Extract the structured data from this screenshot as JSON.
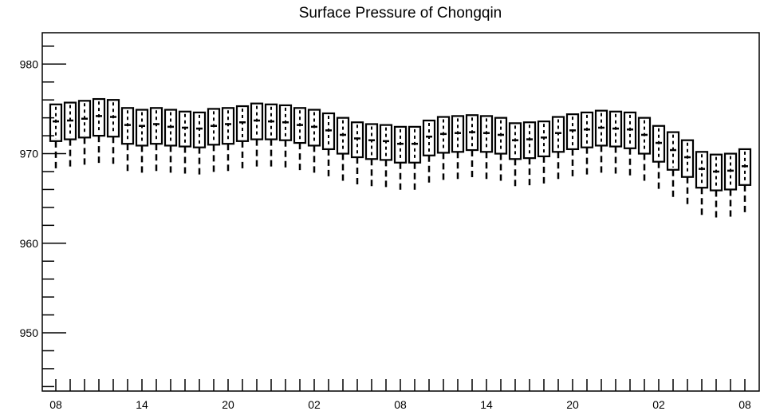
{
  "chart_data": {
    "type": "boxplot",
    "title": "Surface Pressure of Chongqin",
    "xlabel": "",
    "ylabel": "",
    "ylim": [
      943.5,
      983.5
    ],
    "y_ticks": [
      950,
      960,
      970,
      980
    ],
    "y_tick_labels": [
      "950",
      "960",
      "970",
      "980"
    ],
    "x_tick_labels": [
      "08",
      "14",
      "20",
      "02",
      "08",
      "14",
      "20",
      "02",
      "08"
    ],
    "x_tick_positions": [
      0,
      6,
      12,
      18,
      24,
      30,
      36,
      42,
      48
    ],
    "grid": false,
    "boxes": [
      {
        "x": 0,
        "min": 968.1,
        "q1": 971.4,
        "median": 973.6,
        "q3": 975.5,
        "max": 975.5
      },
      {
        "x": 1,
        "min": 968.3,
        "q1": 971.6,
        "median": 973.7,
        "q3": 975.7,
        "max": 975.7
      },
      {
        "x": 2,
        "min": 968.5,
        "q1": 971.8,
        "median": 973.9,
        "q3": 975.9,
        "max": 975.9
      },
      {
        "x": 3,
        "min": 968.7,
        "q1": 972.0,
        "median": 974.2,
        "q3": 976.1,
        "max": 976.1
      },
      {
        "x": 4,
        "min": 968.6,
        "q1": 971.9,
        "median": 974.1,
        "q3": 976.0,
        "max": 976.0
      },
      {
        "x": 5,
        "min": 967.8,
        "q1": 971.1,
        "median": 973.2,
        "q3": 975.1,
        "max": 975.1
      },
      {
        "x": 6,
        "min": 967.7,
        "q1": 970.9,
        "median": 973.1,
        "q3": 974.9,
        "max": 974.9
      },
      {
        "x": 7,
        "min": 967.9,
        "q1": 971.1,
        "median": 973.3,
        "q3": 975.1,
        "max": 975.1
      },
      {
        "x": 8,
        "min": 967.7,
        "q1": 970.9,
        "median": 973.0,
        "q3": 974.9,
        "max": 974.9
      },
      {
        "x": 9,
        "min": 967.5,
        "q1": 970.8,
        "median": 972.9,
        "q3": 974.7,
        "max": 974.7
      },
      {
        "x": 10,
        "min": 967.4,
        "q1": 970.7,
        "median": 972.8,
        "q3": 974.6,
        "max": 974.6
      },
      {
        "x": 11,
        "min": 967.7,
        "q1": 971.0,
        "median": 973.1,
        "q3": 975.0,
        "max": 975.0
      },
      {
        "x": 12,
        "min": 967.9,
        "q1": 971.1,
        "median": 973.3,
        "q3": 975.1,
        "max": 975.1
      },
      {
        "x": 13,
        "min": 968.1,
        "q1": 971.4,
        "median": 973.5,
        "q3": 975.3,
        "max": 975.3
      },
      {
        "x": 14,
        "min": 968.4,
        "q1": 971.6,
        "median": 973.7,
        "q3": 975.6,
        "max": 975.6
      },
      {
        "x": 15,
        "min": 968.3,
        "q1": 971.6,
        "median": 973.6,
        "q3": 975.5,
        "max": 975.5
      },
      {
        "x": 16,
        "min": 968.2,
        "q1": 971.5,
        "median": 973.5,
        "q3": 975.4,
        "max": 975.4
      },
      {
        "x": 17,
        "min": 967.9,
        "q1": 971.2,
        "median": 973.2,
        "q3": 975.1,
        "max": 975.1
      },
      {
        "x": 18,
        "min": 967.7,
        "q1": 970.9,
        "median": 973.0,
        "q3": 974.9,
        "max": 974.9
      },
      {
        "x": 19,
        "min": 967.2,
        "q1": 970.5,
        "median": 972.6,
        "q3": 974.5,
        "max": 974.5
      },
      {
        "x": 20,
        "min": 966.7,
        "q1": 970.0,
        "median": 972.1,
        "q3": 974.0,
        "max": 974.0
      },
      {
        "x": 21,
        "min": 966.3,
        "q1": 969.6,
        "median": 971.7,
        "q3": 973.5,
        "max": 973.5
      },
      {
        "x": 22,
        "min": 966.1,
        "q1": 969.4,
        "median": 971.5,
        "q3": 973.3,
        "max": 973.3
      },
      {
        "x": 23,
        "min": 966.0,
        "q1": 969.3,
        "median": 971.4,
        "q3": 973.2,
        "max": 973.2
      },
      {
        "x": 24,
        "min": 965.8,
        "q1": 969.0,
        "median": 971.1,
        "q3": 973.0,
        "max": 973.0
      },
      {
        "x": 25,
        "min": 965.8,
        "q1": 969.0,
        "median": 971.1,
        "q3": 973.0,
        "max": 973.0
      },
      {
        "x": 26,
        "min": 966.5,
        "q1": 969.8,
        "median": 971.9,
        "q3": 973.7,
        "max": 973.7
      },
      {
        "x": 27,
        "min": 966.9,
        "q1": 970.1,
        "median": 972.2,
        "q3": 974.1,
        "max": 974.1
      },
      {
        "x": 28,
        "min": 967.0,
        "q1": 970.2,
        "median": 972.3,
        "q3": 974.2,
        "max": 974.2
      },
      {
        "x": 29,
        "min": 967.1,
        "q1": 970.4,
        "median": 972.4,
        "q3": 974.3,
        "max": 974.3
      },
      {
        "x": 30,
        "min": 967.0,
        "q1": 970.2,
        "median": 972.3,
        "q3": 974.2,
        "max": 974.2
      },
      {
        "x": 31,
        "min": 966.8,
        "q1": 970.0,
        "median": 972.1,
        "q3": 974.0,
        "max": 974.0
      },
      {
        "x": 32,
        "min": 966.2,
        "q1": 969.4,
        "median": 971.5,
        "q3": 973.4,
        "max": 973.4
      },
      {
        "x": 33,
        "min": 966.2,
        "q1": 969.5,
        "median": 971.6,
        "q3": 973.5,
        "max": 973.5
      },
      {
        "x": 34,
        "min": 966.4,
        "q1": 969.7,
        "median": 971.8,
        "q3": 973.6,
        "max": 973.6
      },
      {
        "x": 35,
        "min": 966.9,
        "q1": 970.2,
        "median": 972.3,
        "q3": 974.1,
        "max": 974.1
      },
      {
        "x": 36,
        "min": 967.3,
        "q1": 970.5,
        "median": 972.6,
        "q3": 974.4,
        "max": 974.4
      },
      {
        "x": 37,
        "min": 967.4,
        "q1": 970.7,
        "median": 972.7,
        "q3": 974.6,
        "max": 974.6
      },
      {
        "x": 38,
        "min": 967.6,
        "q1": 970.9,
        "median": 972.9,
        "q3": 974.8,
        "max": 974.8
      },
      {
        "x": 39,
        "min": 967.5,
        "q1": 970.8,
        "median": 972.8,
        "q3": 974.7,
        "max": 974.7
      },
      {
        "x": 40,
        "min": 967.3,
        "q1": 970.6,
        "median": 972.7,
        "q3": 974.6,
        "max": 974.6
      },
      {
        "x": 41,
        "min": 966.7,
        "q1": 970.0,
        "median": 972.1,
        "q3": 974.0,
        "max": 974.0
      },
      {
        "x": 42,
        "min": 965.8,
        "q1": 969.1,
        "median": 971.2,
        "q3": 973.1,
        "max": 973.1
      },
      {
        "x": 43,
        "min": 964.9,
        "q1": 968.2,
        "median": 970.4,
        "q3": 972.4,
        "max": 972.4
      },
      {
        "x": 44,
        "min": 964.1,
        "q1": 967.4,
        "median": 969.6,
        "q3": 971.5,
        "max": 971.5
      },
      {
        "x": 45,
        "min": 962.9,
        "q1": 966.2,
        "median": 968.3,
        "q3": 970.2,
        "max": 970.2
      },
      {
        "x": 46,
        "min": 962.6,
        "q1": 965.9,
        "median": 968.0,
        "q3": 969.9,
        "max": 969.9
      },
      {
        "x": 47,
        "min": 962.7,
        "q1": 966.0,
        "median": 968.1,
        "q3": 970.0,
        "max": 970.0
      },
      {
        "x": 48,
        "min": 963.3,
        "q1": 966.5,
        "median": 968.6,
        "q3": 970.5,
        "max": 970.5
      }
    ]
  }
}
